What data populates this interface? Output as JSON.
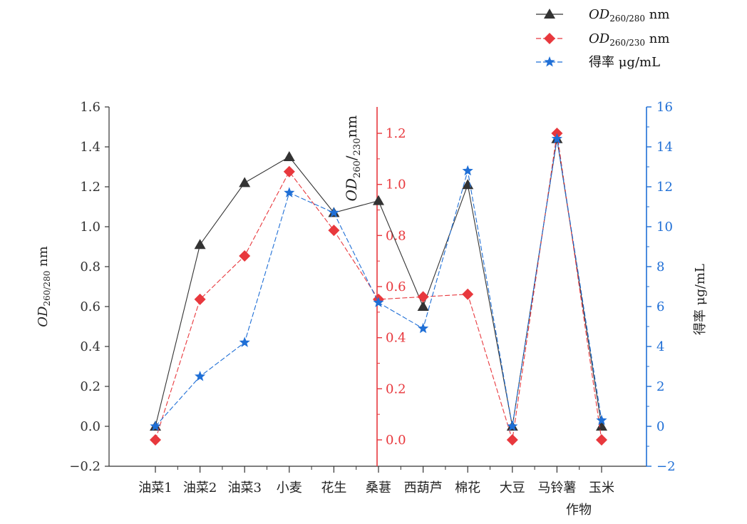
{
  "chart_data": {
    "type": "line",
    "categories": [
      "油菜1",
      "油菜2",
      "油菜3",
      "小麦",
      "花生",
      "桑葚",
      "西葫芦",
      "棉花",
      "大豆",
      "马铃薯",
      "玉米"
    ],
    "xlabel": "作物",
    "axes": {
      "left": {
        "label_main": "OD",
        "label_sub": "260/280",
        "label_unit": " nm",
        "ylim": [
          -0.2,
          1.6
        ],
        "ticks": [
          -0.2,
          0.0,
          0.2,
          0.4,
          0.6,
          0.8,
          1.0,
          1.2,
          1.4,
          1.6
        ],
        "tick_labels": [
          "−0.2",
          "0.0",
          "0.2",
          "0.4",
          "0.6",
          "0.8",
          "1.0",
          "1.2",
          "1.4",
          "1.6"
        ],
        "color": "#333333"
      },
      "middle": {
        "label_main": "OD",
        "label_sub": "260",
        "label_sep": "/",
        "label_sub2": "230",
        "label_unit": "nm",
        "ylim": [
          -0.1,
          1.3
        ],
        "ticks": [
          0.0,
          0.2,
          0.4,
          0.6,
          0.8,
          1.0,
          1.2
        ],
        "tick_labels": [
          "0.0",
          "0.2",
          "0.4",
          "0.6",
          "0.8",
          "1.0",
          "1.2"
        ],
        "color": "#e8383d"
      },
      "right": {
        "label": "得率 μg/mL",
        "ylim": [
          -2,
          16
        ],
        "ticks": [
          -2,
          0,
          2,
          4,
          6,
          8,
          10,
          12,
          14,
          16
        ],
        "tick_labels": [
          "−2",
          "0",
          "2",
          "4",
          "6",
          "8",
          "10",
          "12",
          "14",
          "16"
        ],
        "color": "#1f6fd6"
      }
    },
    "series": [
      {
        "name_main": "OD",
        "name_sub": "260/280",
        "name_unit": " nm",
        "axis": "left",
        "marker": "triangle",
        "color": "#333333",
        "values": [
          0.0,
          0.91,
          1.22,
          1.35,
          1.07,
          1.13,
          0.6,
          1.21,
          0.0,
          1.44,
          0.0
        ]
      },
      {
        "name_main": "OD",
        "name_sub": "260/230",
        "name_unit": " nm",
        "axis": "middle",
        "marker": "diamond",
        "color": "#e8383d",
        "values": [
          0.0,
          0.55,
          0.72,
          1.05,
          0.82,
          0.55,
          0.56,
          0.57,
          0.0,
          1.2,
          0.0
        ]
      },
      {
        "name": "得率 μg/mL",
        "axis": "right",
        "marker": "star",
        "color": "#1f6fd6",
        "values": [
          0.0,
          2.5,
          4.2,
          11.7,
          10.7,
          6.2,
          4.9,
          12.8,
          0.0,
          14.4,
          0.3
        ]
      }
    ],
    "legend_position": "top-right"
  }
}
